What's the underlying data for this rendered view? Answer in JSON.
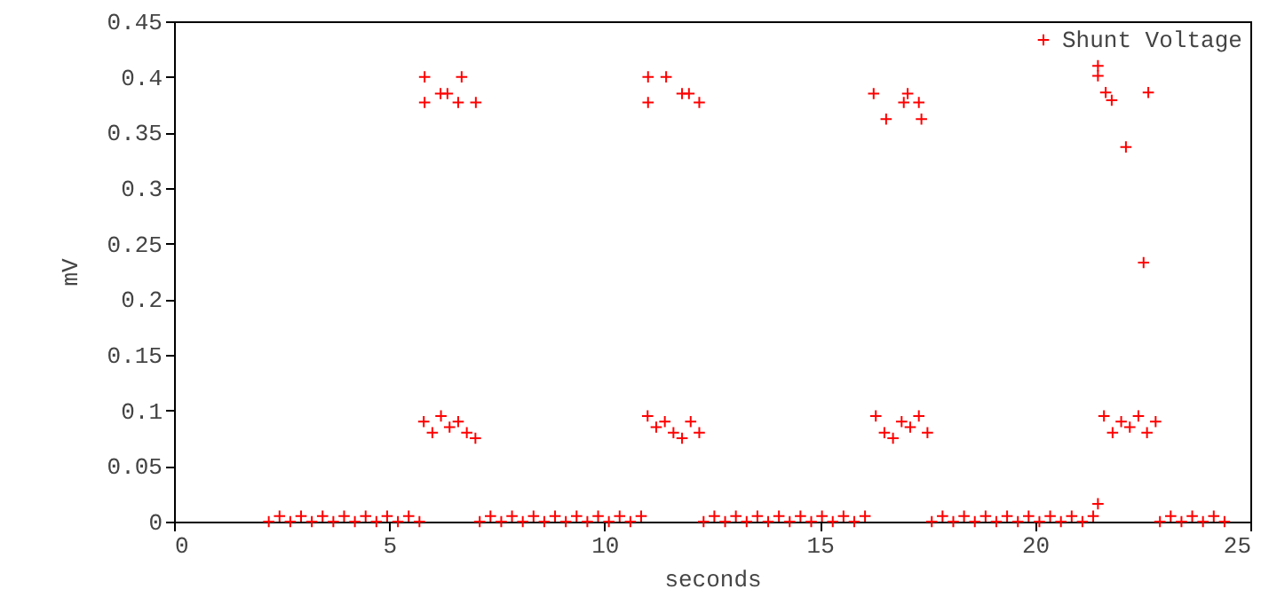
{
  "chart_data": {
    "type": "scatter",
    "xlabel": "seconds",
    "ylabel": "mV",
    "marker": "cross",
    "legend": "top right",
    "grid": false,
    "xlim": [
      0,
      25
    ],
    "xticks": [
      0,
      5,
      10,
      15,
      20,
      25
    ],
    "ylim": [
      0,
      0.45
    ],
    "yticks": [
      0,
      0.05,
      0.1,
      0.15,
      0.2,
      0.25,
      0.3,
      0.35,
      0.4,
      0.45
    ],
    "series": [
      {
        "name": "Shunt Voltage",
        "color": "#ff0000",
        "x": [
          2.2,
          2.45,
          2.7,
          2.95,
          3.2,
          3.45,
          3.7,
          3.95,
          4.2,
          4.45,
          4.7,
          4.95,
          5.2,
          5.45,
          5.7,
          7.1,
          7.35,
          7.6,
          7.85,
          8.1,
          8.35,
          8.6,
          8.85,
          9.1,
          9.35,
          9.6,
          9.85,
          10.1,
          10.35,
          10.6,
          10.85,
          12.3,
          12.55,
          12.8,
          13.05,
          13.3,
          13.55,
          13.8,
          14.05,
          14.3,
          14.55,
          14.8,
          15.05,
          15.3,
          15.55,
          15.8,
          16.05,
          17.6,
          17.85,
          18.1,
          18.35,
          18.6,
          18.85,
          19.1,
          19.35,
          19.6,
          19.85,
          20.1,
          20.35,
          20.6,
          20.85,
          21.1,
          21.35,
          22.9,
          23.15,
          23.4,
          23.65,
          23.9,
          24.15,
          24.4,
          5.8,
          6.0,
          6.2,
          6.4,
          6.6,
          6.8,
          7.0,
          11.0,
          11.2,
          11.4,
          11.6,
          11.8,
          12.0,
          12.2,
          16.3,
          16.5,
          16.7,
          16.9,
          17.1,
          17.3,
          17.5,
          21.6,
          21.8,
          22.0,
          22.2,
          22.4,
          22.6,
          22.8,
          5.82,
          5.82,
          6.19,
          6.35,
          6.6,
          6.68,
          7.01,
          11.01,
          11.01,
          11.43,
          11.8,
          11.96,
          12.2,
          16.25,
          16.54,
          16.95,
          17.04,
          17.3,
          17.36,
          21.46,
          21.46,
          21.64,
          21.78,
          22.11,
          22.52,
          22.63,
          21.46
        ],
        "values": [
          0,
          0.005,
          0,
          0.005,
          0,
          0.005,
          0,
          0.005,
          0,
          0.005,
          0,
          0.005,
          0,
          0.005,
          0,
          0,
          0.005,
          0,
          0.005,
          0,
          0.005,
          0,
          0.005,
          0,
          0.005,
          0,
          0.005,
          0,
          0.005,
          0,
          0.005,
          0,
          0.005,
          0,
          0.005,
          0,
          0.005,
          0,
          0.005,
          0,
          0.005,
          0,
          0.005,
          0,
          0.005,
          0,
          0.005,
          0,
          0.005,
          0,
          0.005,
          0,
          0.005,
          0,
          0.005,
          0,
          0.005,
          0,
          0.005,
          0,
          0.005,
          0,
          0.005,
          0,
          0.005,
          0,
          0.005,
          0,
          0.005,
          0,
          0.09,
          0.08,
          0.095,
          0.085,
          0.09,
          0.08,
          0.075,
          0.095,
          0.085,
          0.09,
          0.08,
          0.075,
          0.09,
          0.08,
          0.095,
          0.08,
          0.075,
          0.09,
          0.085,
          0.095,
          0.08,
          0.095,
          0.08,
          0.09,
          0.085,
          0.095,
          0.08,
          0.09,
          0.4,
          0.377,
          0.385,
          0.385,
          0.377,
          0.4,
          0.377,
          0.4,
          0.377,
          0.4,
          0.385,
          0.385,
          0.377,
          0.385,
          0.362,
          0.377,
          0.385,
          0.377,
          0.362,
          0.41,
          0.401,
          0.386,
          0.379,
          0.337,
          0.233,
          0.386,
          0.016
        ]
      }
    ]
  }
}
